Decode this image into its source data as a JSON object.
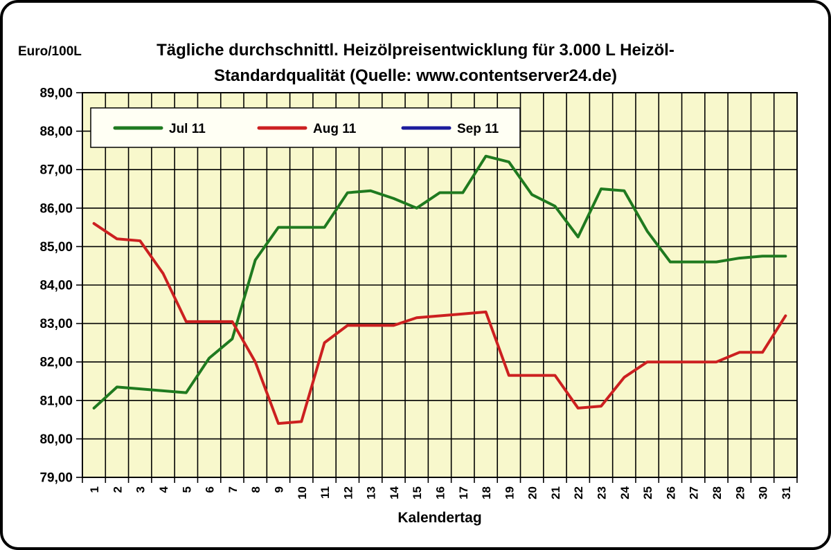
{
  "page": {
    "y_axis_unit": "Euro/100L",
    "title_line1": "Tägliche durchschnittl. Heizölpreisentwicklung für 3.000 L Heizöl-",
    "title_line2": "Standardqualität (Quelle: www.contentserver24.de)",
    "x_axis_title": "Kalendertag"
  },
  "chart_data": {
    "type": "line",
    "title": "Tägliche durchschnittl. Heizölpreisentwicklung für 3.000 L Heizöl-Standardqualität (Quelle: www.contentserver24.de)",
    "xlabel": "Kalendertag",
    "ylabel": "Euro/100L",
    "x": [
      1,
      2,
      3,
      4,
      5,
      6,
      7,
      8,
      9,
      10,
      11,
      12,
      13,
      14,
      15,
      16,
      17,
      18,
      19,
      20,
      21,
      22,
      23,
      24,
      25,
      26,
      27,
      28,
      29,
      30,
      31
    ],
    "ylim": [
      79,
      89
    ],
    "ytick_step": 1,
    "ytick_labels": [
      "89,00",
      "88,00",
      "87,00",
      "86,00",
      "85,00",
      "84,00",
      "83,00",
      "82,00",
      "81,00",
      "80,00",
      "79,00"
    ],
    "grid": true,
    "plot_bg": "#F8F8CC",
    "gridline_color": "#000000",
    "legend_position": "top-inside",
    "legend_bg": "#FFFFF4",
    "series": [
      {
        "name": "Jul 11",
        "color": "#1F7A1F",
        "values": [
          80.8,
          81.35,
          81.3,
          81.25,
          81.2,
          82.1,
          82.6,
          84.65,
          85.5,
          85.5,
          85.5,
          86.4,
          86.45,
          86.25,
          86.0,
          86.4,
          86.4,
          87.35,
          87.2,
          86.35,
          86.05,
          85.25,
          86.5,
          86.45,
          85.4,
          84.6,
          84.6,
          84.6,
          84.7,
          84.75,
          84.75
        ]
      },
      {
        "name": "Aug 11",
        "color": "#CC2020",
        "values": [
          85.6,
          85.2,
          85.15,
          84.3,
          83.05,
          83.05,
          83.05,
          82.0,
          80.4,
          80.45,
          82.5,
          82.95,
          82.95,
          82.95,
          83.15,
          83.2,
          83.25,
          83.3,
          81.65,
          81.65,
          81.65,
          80.8,
          80.85,
          81.6,
          82.0,
          82.0,
          82.0,
          82.0,
          82.25,
          82.25,
          83.2
        ]
      },
      {
        "name": "Sep 11",
        "color": "#1C1C9C",
        "values": []
      }
    ]
  }
}
